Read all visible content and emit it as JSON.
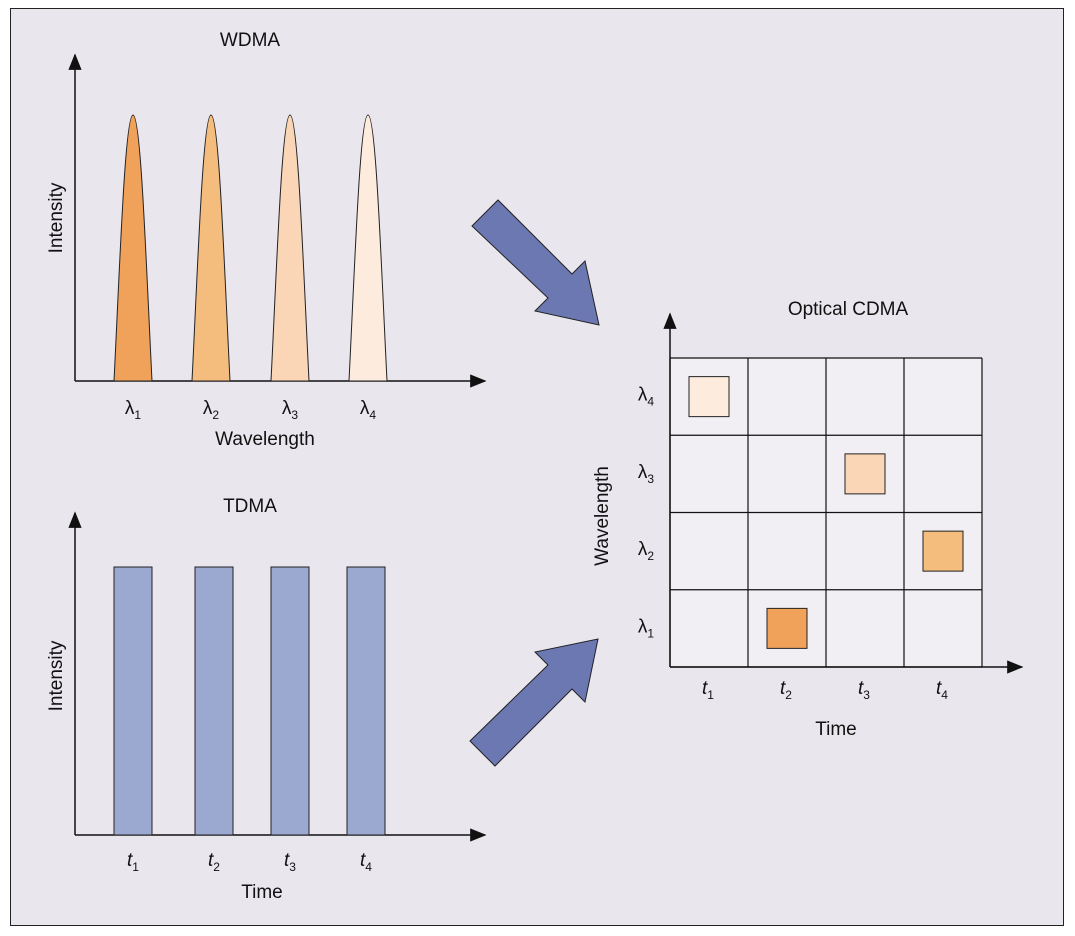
{
  "wdma": {
    "title": "WDMA",
    "ylabel": "Intensity",
    "xlabel": "Wavelength",
    "ticks": [
      {
        "sym": "λ",
        "sub": "1"
      },
      {
        "sym": "λ",
        "sub": "2"
      },
      {
        "sym": "λ",
        "sub": "3"
      },
      {
        "sym": "λ",
        "sub": "4"
      }
    ],
    "peak_colors": [
      "#f0a15a",
      "#f5bd7d",
      "#fad5b6",
      "#fdebdd"
    ]
  },
  "tdma": {
    "title": "TDMA",
    "ylabel": "Intensity",
    "xlabel": "Time",
    "ticks": [
      {
        "sym": "t",
        "sub": "1"
      },
      {
        "sym": "t",
        "sub": "2"
      },
      {
        "sym": "t",
        "sub": "3"
      },
      {
        "sym": "t",
        "sub": "4"
      }
    ],
    "bar_color": "#9ba8cf"
  },
  "cdma": {
    "title": "Optical CDMA",
    "ylabel": "Wavelength",
    "xlabel": "Time",
    "x_ticks": [
      {
        "sym": "t",
        "sub": "1"
      },
      {
        "sym": "t",
        "sub": "2"
      },
      {
        "sym": "t",
        "sub": "3"
      },
      {
        "sym": "t",
        "sub": "4"
      }
    ],
    "y_ticks": [
      {
        "sym": "λ",
        "sub": "4"
      },
      {
        "sym": "λ",
        "sub": "3"
      },
      {
        "sym": "λ",
        "sub": "2"
      },
      {
        "sym": "λ",
        "sub": "1"
      }
    ],
    "code_chips": [
      {
        "time_slot": 1,
        "wavelength": 4,
        "color": "#fdebdd"
      },
      {
        "time_slot": 3,
        "wavelength": 3,
        "color": "#fad5b6"
      },
      {
        "time_slot": 4,
        "wavelength": 2,
        "color": "#f5bd7d"
      },
      {
        "time_slot": 2,
        "wavelength": 1,
        "color": "#f0a15a"
      }
    ]
  },
  "arrow_color": "#6b78b2"
}
